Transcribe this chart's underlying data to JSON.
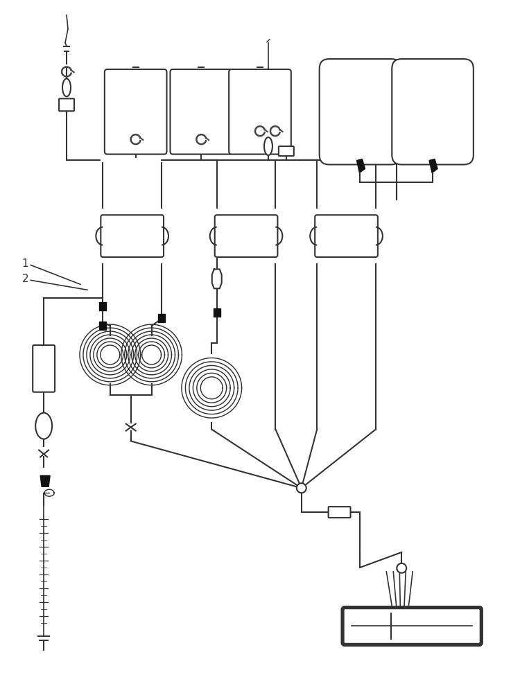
{
  "bg_color": "#ffffff",
  "line_color": "#333333",
  "line_width": 1.5,
  "fill_color": "#ffffff",
  "dark_fill": "#111111",
  "label_1": "1",
  "label_2": "2",
  "figsize": [
    7.5,
    10.0
  ],
  "dpi": 100
}
